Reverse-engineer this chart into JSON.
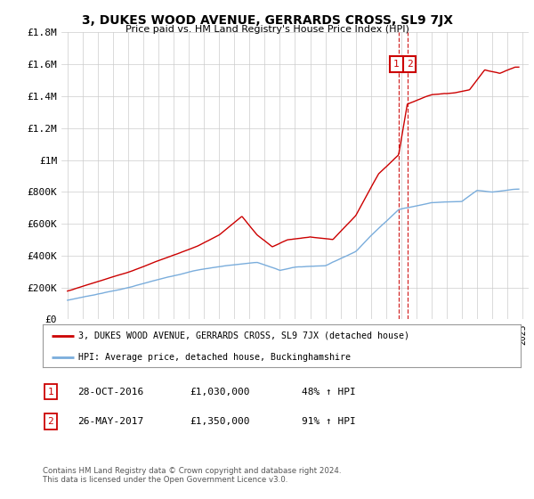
{
  "title": "3, DUKES WOOD AVENUE, GERRARDS CROSS, SL9 7JX",
  "subtitle": "Price paid vs. HM Land Registry's House Price Index (HPI)",
  "legend_line1": "3, DUKES WOOD AVENUE, GERRARDS CROSS, SL9 7JX (detached house)",
  "legend_line2": "HPI: Average price, detached house, Buckinghamshire",
  "footer1": "Contains HM Land Registry data © Crown copyright and database right 2024.",
  "footer2": "This data is licensed under the Open Government Licence v3.0.",
  "sale1_label": "1",
  "sale1_date": "28-OCT-2016",
  "sale1_price": "£1,030,000",
  "sale1_hpi": "48% ↑ HPI",
  "sale2_label": "2",
  "sale2_date": "26-MAY-2017",
  "sale2_price": "£1,350,000",
  "sale2_hpi": "91% ↑ HPI",
  "red_color": "#cc0000",
  "blue_color": "#7aaddc",
  "background_color": "#ffffff",
  "grid_color": "#cccccc",
  "ylim": [
    0,
    1800000
  ],
  "yticks": [
    0,
    200000,
    400000,
    600000,
    800000,
    1000000,
    1200000,
    1400000,
    1600000,
    1800000
  ],
  "ytick_labels": [
    "£0",
    "£200K",
    "£400K",
    "£600K",
    "£800K",
    "£1M",
    "£1.2M",
    "£1.4M",
    "£1.6M",
    "£1.8M"
  ],
  "sale1_x": 2016.83,
  "sale1_y": 1030000,
  "sale2_x": 2017.4,
  "sale2_y": 1350000,
  "xmin": 1994.6,
  "xmax": 2025.4
}
